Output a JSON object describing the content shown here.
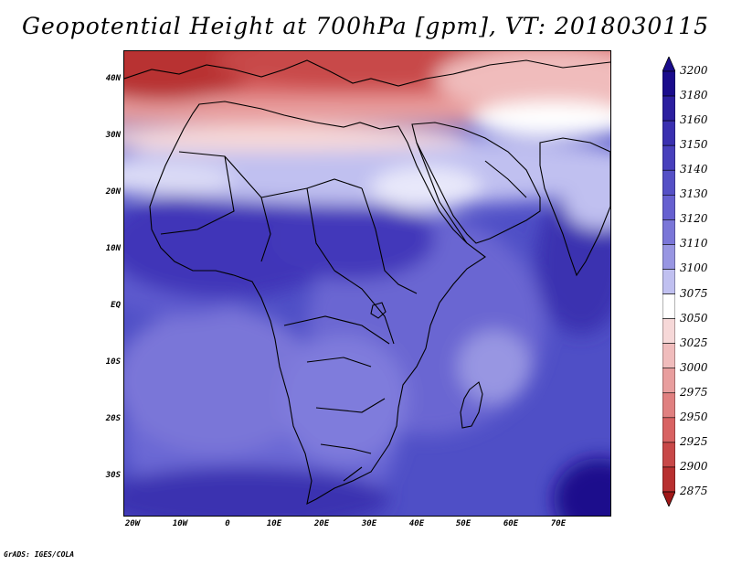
{
  "title": "Geopotential Height at 700hPa [gpm], VT: 2018030115",
  "credit": "GrADS: IGES/COLA",
  "axes": {
    "lat_labels": [
      "40N",
      "30N",
      "20N",
      "10N",
      "EQ",
      "10S",
      "20S",
      "30S"
    ],
    "lon_labels": [
      "20W",
      "10W",
      "0",
      "10E",
      "20E",
      "30E",
      "40E",
      "50E",
      "60E",
      "70E"
    ]
  },
  "colorbar": {
    "levels": [
      "3200",
      "3180",
      "3160",
      "3150",
      "3140",
      "3130",
      "3120",
      "3110",
      "3100",
      "3075",
      "3050",
      "3025",
      "3000",
      "2975",
      "2950",
      "2925",
      "2900",
      "2875"
    ],
    "colors": [
      "#1a0c8c",
      "#2c1fa0",
      "#3a30b0",
      "#4840bc",
      "#5550c6",
      "#6660d0",
      "#7a76d8",
      "#9896e2",
      "#c0c0f0",
      "#ffffff",
      "#f6d8d8",
      "#f0bcbc",
      "#e89e9e",
      "#e08080",
      "#d86262",
      "#c84848",
      "#b83030",
      "#a01818"
    ]
  },
  "map": {
    "domain": "Africa / Middle East",
    "lon_range": [
      -22,
      81
    ],
    "lat_range": [
      -37,
      45
    ],
    "fields": {
      "north_band": "low heights (reds) across Mediterranean, 2875–3050",
      "ridge": "white/light band near 26–30N",
      "tropics": "blues 3120–3160 over Sahara and tropics",
      "southern_ocean": "darker blue 3160–3180 in the southeast corner"
    }
  }
}
